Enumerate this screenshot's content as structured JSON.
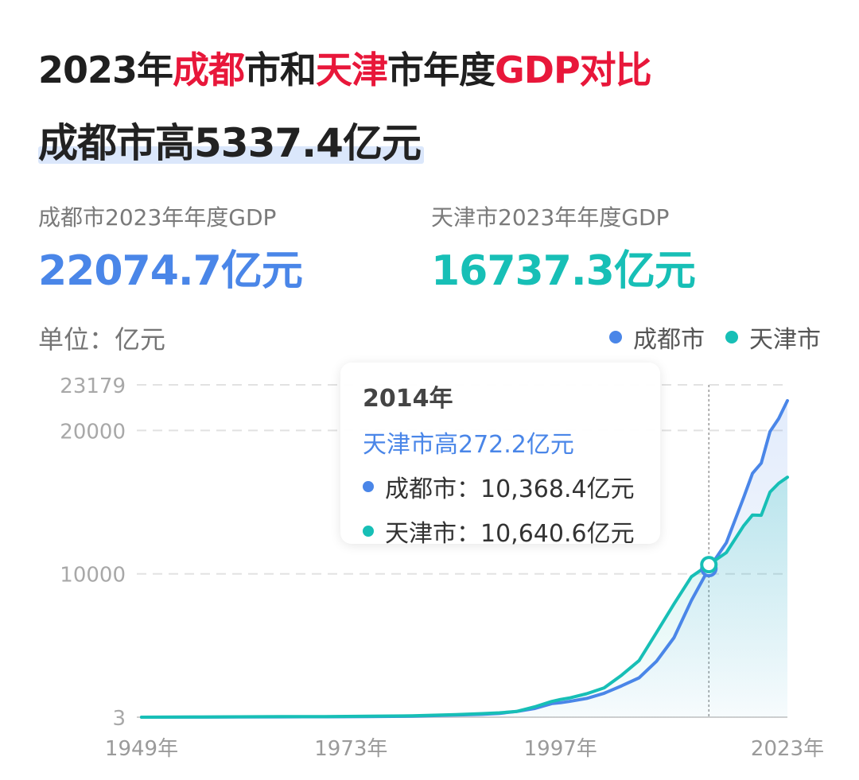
{
  "header": {
    "title_parts": [
      "2023年",
      "成都",
      "市和",
      "天津",
      "市年度",
      "GDP对比"
    ],
    "headline": "成都市高5337.4亿元"
  },
  "stats": {
    "chengdu_label": "成都市2023年年度GDP",
    "chengdu_value": "22074.7亿元",
    "tianjin_label": "天津市2023年年度GDP",
    "tianjin_value": "16737.3亿元"
  },
  "unit_label": "单位：亿元",
  "legend": {
    "chengdu": "成都市",
    "tianjin": "天津市"
  },
  "tooltip": {
    "year": "2014年",
    "diff": "天津市高272.2亿元",
    "chengdu_line": "成都市：10,368.4亿元",
    "tianjin_line": "天津市：10,640.6亿元"
  },
  "colors": {
    "chengdu": "#4a86e8",
    "tianjin": "#17bfb6",
    "accent_red": "#e8173a"
  },
  "chart_data": {
    "type": "line",
    "y_tick_labels": [
      "3",
      "10000",
      "20000",
      "23179"
    ],
    "y_ticks": [
      3,
      10000,
      20000,
      23179
    ],
    "x_tick_labels": [
      "1949年",
      "1973年",
      "1997年",
      "2023年"
    ],
    "x_ticks": [
      1949,
      1973,
      1997,
      2023
    ],
    "ylim": [
      3,
      23179
    ],
    "xlim": [
      1949,
      2023
    ],
    "highlight_year": 2014,
    "grid": true,
    "legend_position": "top-right",
    "series": [
      {
        "name": "成都市",
        "x": [
          1949,
          1955,
          1960,
          1965,
          1970,
          1975,
          1980,
          1985,
          1988,
          1990,
          1992,
          1994,
          1996,
          1997,
          1998,
          2000,
          2002,
          2004,
          2006,
          2008,
          2010,
          2012,
          2014,
          2016,
          2018,
          2019,
          2020,
          2021,
          2022,
          2023
        ],
        "values": [
          3,
          10,
          20,
          25,
          30,
          40,
          70,
          150,
          200,
          270,
          400,
          600,
          950,
          1010,
          1100,
          1310,
          1670,
          2190,
          2750,
          3900,
          5550,
          8140,
          10368.4,
          12170,
          15340,
          17010,
          17720,
          19920,
          20820,
          22074.7
        ]
      },
      {
        "name": "天津市",
        "x": [
          1949,
          1955,
          1960,
          1965,
          1970,
          1975,
          1980,
          1985,
          1988,
          1990,
          1992,
          1994,
          1996,
          1997,
          1998,
          2000,
          2002,
          2004,
          2006,
          2008,
          2010,
          2012,
          2014,
          2016,
          2018,
          2019,
          2020,
          2021,
          2022,
          2023
        ],
        "values": [
          5,
          15,
          30,
          40,
          50,
          70,
          100,
          180,
          250,
          310,
          410,
          720,
          1100,
          1240,
          1340,
          1640,
          2050,
          2930,
          3950,
          5900,
          7900,
          9800,
          10640.6,
          11480,
          13360,
          14100,
          14080,
          15700,
          16310,
          16737.3
        ]
      }
    ]
  }
}
